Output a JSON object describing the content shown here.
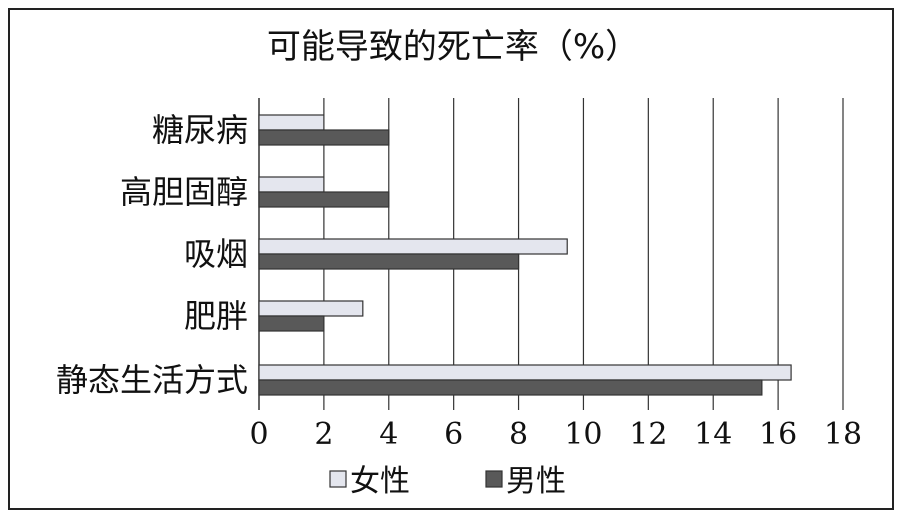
{
  "chart_data": {
    "type": "bar",
    "orientation": "horizontal",
    "title": "可能导致的死亡率（%）",
    "categories": [
      "糖尿病",
      "高胆固醇",
      "吸烟",
      "肥胖",
      "静态生活方式"
    ],
    "series": [
      {
        "name": "女性",
        "values": [
          2,
          2,
          9.5,
          3.2,
          16.4
        ],
        "color": "#e4e6ee"
      },
      {
        "name": "男性",
        "values": [
          4,
          4,
          8,
          2,
          15.5
        ],
        "color": "#595959"
      }
    ],
    "xlim": [
      0,
      18
    ],
    "xticks": [
      0,
      2,
      4,
      6,
      8,
      10,
      12,
      14,
      16,
      18
    ],
    "grid": true,
    "legend": "bottom"
  }
}
